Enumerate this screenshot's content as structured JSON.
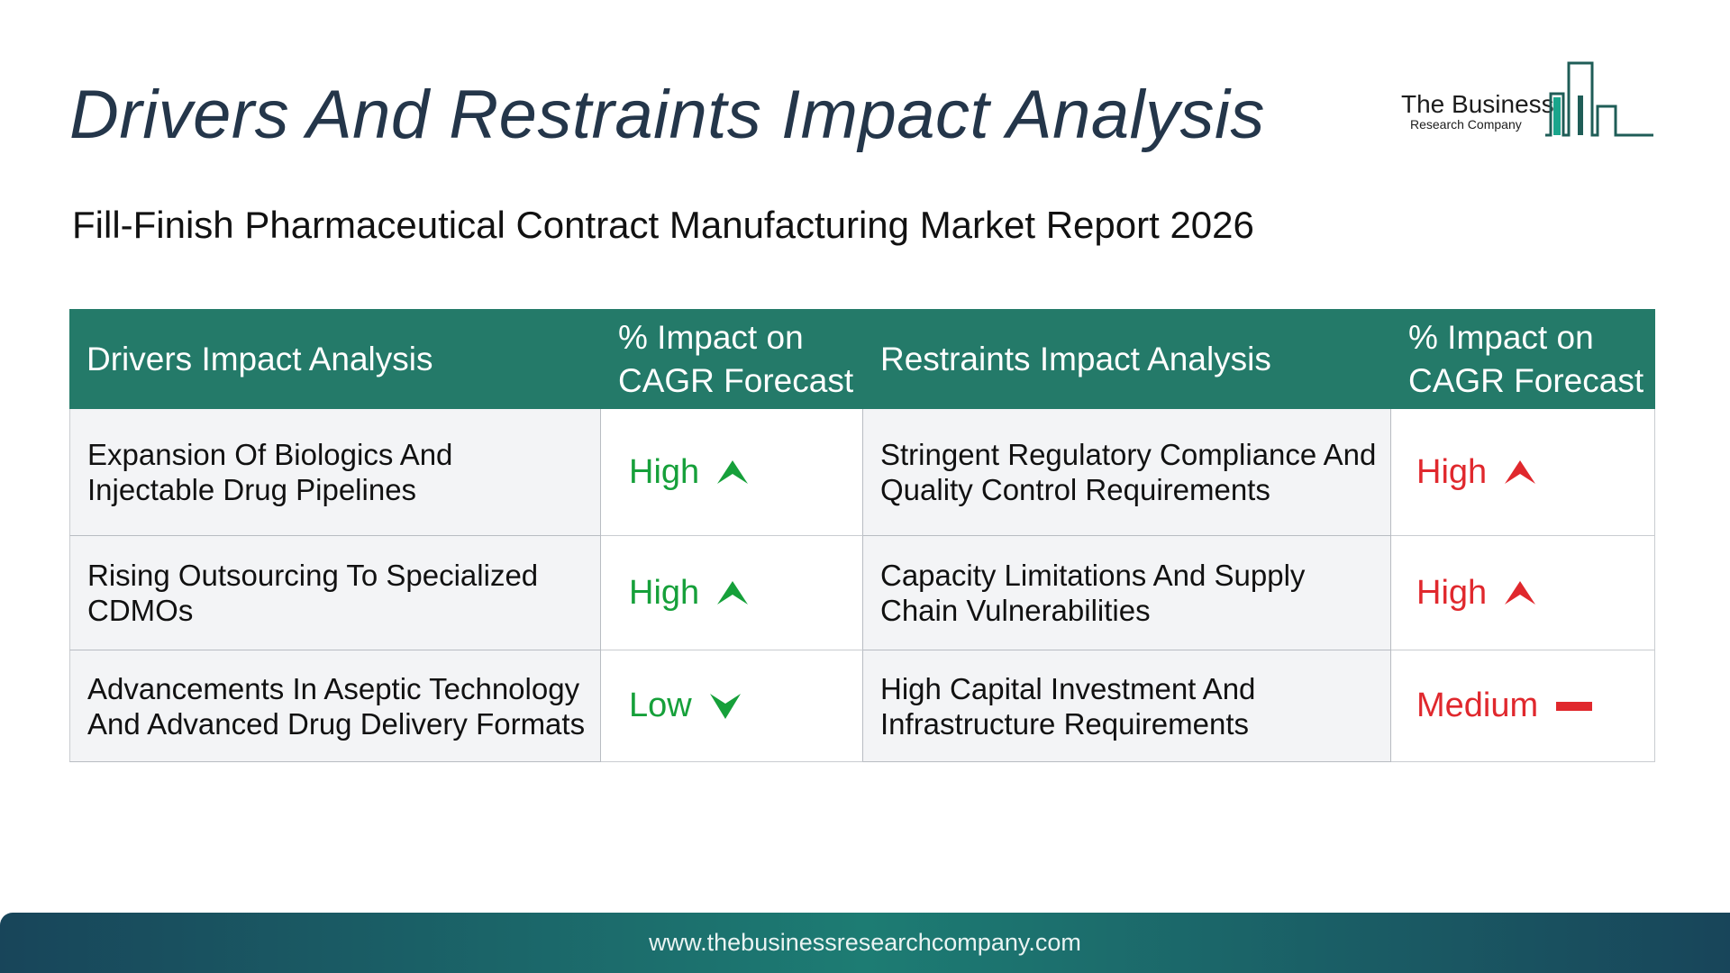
{
  "header": {
    "title": "Drivers And Restraints Impact Analysis",
    "subtitle": "Fill-Finish Pharmaceutical Contract Manufacturing Market Report 2026"
  },
  "logo": {
    "name": "The Business",
    "tagline": "Research Company"
  },
  "table": {
    "headers": {
      "drivers": "Drivers Impact Analysis",
      "drivers_impact": "% Impact on CAGR Forecast",
      "restraints": "Restraints Impact Analysis",
      "restraints_impact": "% Impact on CAGR Forecast"
    },
    "rows": [
      {
        "driver": "Expansion Of Biologics And Injectable Drug Pipelines",
        "driver_impact": "High",
        "driver_icon": "up-arrow-icon",
        "restraint": "Stringent Regulatory Compliance And Quality Control Requirements",
        "restraint_impact": "High",
        "restraint_icon": "up-arrow-icon"
      },
      {
        "driver": "Rising Outsourcing To Specialized CDMOs",
        "driver_impact": "High",
        "driver_icon": "up-arrow-icon",
        "restraint": "Capacity Limitations And Supply Chain Vulnerabilities",
        "restraint_impact": "High",
        "restraint_icon": "up-arrow-icon"
      },
      {
        "driver": "Advancements In Aseptic Technology And Advanced Drug Delivery Formats",
        "driver_impact": "Low",
        "driver_icon": "down-arrow-icon",
        "restraint": "High Capital Investment And Infrastructure Requirements",
        "restraint_impact": "Medium",
        "restraint_icon": "dash-icon"
      }
    ]
  },
  "colors": {
    "header_bg": "#247a69",
    "driver_impact": "#16a03a",
    "restraint_impact": "#e0282d",
    "title": "#24364a"
  },
  "footer": {
    "url": "www.thebusinessresearchcompany.com"
  }
}
